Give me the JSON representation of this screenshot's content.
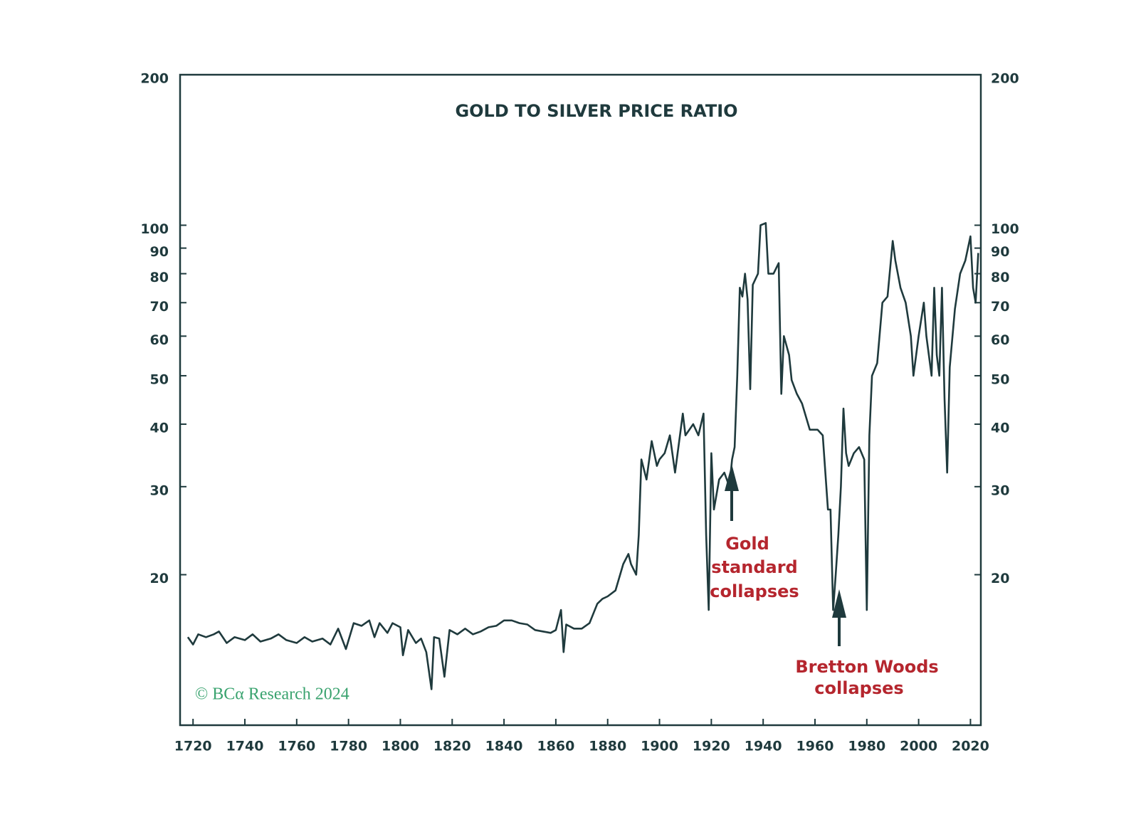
{
  "chart_data": {
    "type": "line",
    "title": "GOLD TO SILVER PRICE RATIO",
    "log_scale": true,
    "color": "#1f3a3d",
    "xlim": [
      1715,
      2024
    ],
    "ylim": [
      10,
      200
    ],
    "xticks": [
      1720,
      1740,
      1760,
      1780,
      1800,
      1820,
      1840,
      1860,
      1880,
      1900,
      1920,
      1940,
      1960,
      1980,
      2000,
      2020
    ],
    "yticks": [
      20,
      30,
      40,
      50,
      60,
      70,
      80,
      90,
      100,
      200
    ],
    "annotations": [
      {
        "lines": [
          "Gold",
          "standard",
          "collapses"
        ]
      },
      {
        "lines": [
          "Bretton Woods",
          "collapses"
        ]
      }
    ],
    "source": "© BCα Research 2024",
    "x": [
      1718,
      1720,
      1722,
      1725,
      1728,
      1730,
      1733,
      1736,
      1740,
      1743,
      1746,
      1750,
      1753,
      1756,
      1760,
      1763,
      1766,
      1770,
      1773,
      1776,
      1779,
      1782,
      1785,
      1788,
      1790,
      1792,
      1795,
      1797,
      1800,
      1801,
      1803,
      1806,
      1808,
      1810,
      1812,
      1813,
      1815,
      1817,
      1819,
      1822,
      1825,
      1828,
      1831,
      1834,
      1837,
      1840,
      1843,
      1846,
      1849,
      1852,
      1855,
      1858,
      1860,
      1862,
      1863,
      1864,
      1867,
      1870,
      1873,
      1876,
      1878,
      1880,
      1883,
      1886,
      1888,
      1889,
      1891,
      1892,
      1893,
      1895,
      1897,
      1899,
      1900,
      1902,
      1904,
      1906,
      1909,
      1910,
      1913,
      1915,
      1917,
      1918,
      1919,
      1920,
      1921,
      1923,
      1925,
      1927,
      1928,
      1929,
      1930,
      1931,
      1932,
      1933,
      1934,
      1935,
      1936,
      1938,
      1939,
      1941,
      1942,
      1944,
      1946,
      1947,
      1948,
      1950,
      1951,
      1953,
      1955,
      1958,
      1961,
      1963,
      1965,
      1966,
      1967,
      1968,
      1969,
      1970,
      1971,
      1972,
      1973,
      1975,
      1977,
      1979,
      1980,
      1981,
      1982,
      1984,
      1986,
      1988,
      1990,
      1991,
      1993,
      1995,
      1997,
      1998,
      2000,
      2002,
      2003,
      2005,
      2006,
      2007,
      2008,
      2009,
      2010,
      2011,
      2012,
      2014,
      2016,
      2018,
      2020,
      2021,
      2022,
      2023
    ],
    "values": [
      15,
      14.5,
      15.2,
      15,
      15.2,
      15.4,
      14.6,
      15,
      14.8,
      15.2,
      14.7,
      14.9,
      15.2,
      14.8,
      14.6,
      15,
      14.7,
      14.9,
      14.5,
      15.6,
      14.2,
      16,
      15.8,
      16.2,
      15,
      16,
      15.3,
      16,
      15.7,
      13.8,
      15.5,
      14.6,
      14.9,
      14,
      11.8,
      15,
      14.9,
      12.5,
      15.5,
      15.2,
      15.6,
      15.2,
      15.4,
      15.7,
      15.8,
      16.2,
      16.2,
      16,
      15.9,
      15.5,
      15.4,
      15.3,
      15.5,
      17,
      14,
      15.9,
      15.6,
      15.6,
      16,
      17.5,
      17.9,
      18.1,
      18.6,
      21,
      22,
      21,
      20,
      24,
      34,
      31,
      37,
      33,
      34,
      35,
      38,
      32,
      42,
      38,
      40,
      38,
      42,
      24,
      17,
      35,
      27,
      31,
      32,
      30,
      34,
      36,
      50,
      75,
      72,
      80,
      71,
      47,
      76,
      80,
      100,
      101,
      80,
      80,
      84,
      46,
      60,
      55,
      49,
      46,
      44,
      39,
      39,
      38,
      27,
      27,
      17,
      20,
      24,
      30,
      43,
      35,
      33,
      35,
      36,
      34,
      17,
      38,
      50,
      53,
      70,
      72,
      93,
      85,
      75,
      70,
      60,
      50,
      60,
      70,
      60,
      50,
      75,
      55,
      50,
      75,
      45,
      32,
      52,
      68,
      80,
      85,
      95,
      75,
      70,
      88
    ]
  }
}
